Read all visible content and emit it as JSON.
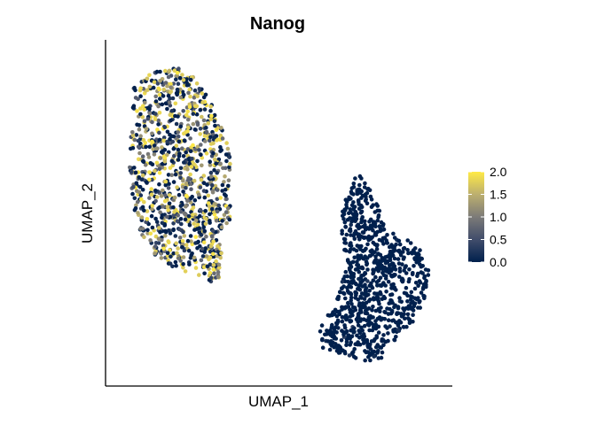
{
  "chart_data": {
    "type": "scatter",
    "title": "Nanog",
    "xlabel": "UMAP_1",
    "ylabel": "UMAP_2",
    "grid": false,
    "x_ticks": false,
    "y_ticks": false,
    "colorbar": {
      "min": 0.0,
      "max": 2.0,
      "ticks": [
        "0.0",
        "0.5",
        "1.0",
        "1.5",
        "2.0"
      ],
      "position": "right",
      "colors": [
        "#00204d",
        "#414d6b",
        "#7c7b78",
        "#bcaf6f",
        "#ffea46"
      ]
    },
    "clusters": [
      {
        "name": "",
        "expression": "mixed, roughly uniform 0.0–2.0",
        "extent_x": [
          -8.5,
          -4.0
        ],
        "extent_y": [
          -6.0,
          9.0
        ],
        "approx_points": 1100
      },
      {
        "name": "",
        "expression": "≈0.0",
        "extent_x": [
          1.5,
          7.0
        ],
        "extent_y": [
          -11.0,
          3.0
        ],
        "approx_points": 900
      }
    ]
  }
}
